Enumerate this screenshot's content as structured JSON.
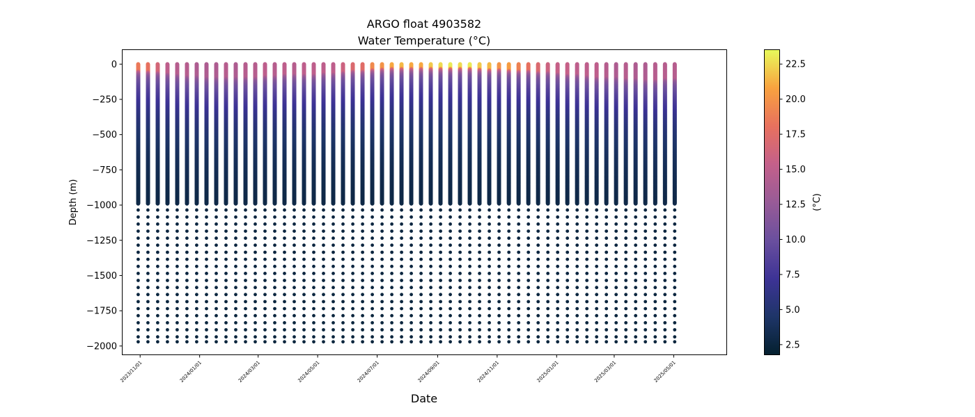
{
  "chart_data": {
    "type": "scatter",
    "title": "ARGO float 4903582",
    "subtitle": "Water Temperature (°C)",
    "xlabel": "Date",
    "ylabel": "Depth (m)",
    "colorbar_label": "(°C)",
    "x_range": [
      "2023-10-14",
      "2025-06-24"
    ],
    "ylim": [
      -2060,
      100
    ],
    "yticks": [
      0,
      -250,
      -500,
      -750,
      -1000,
      -1250,
      -1500,
      -1750,
      -2000
    ],
    "ytick_labels": [
      "0",
      "−250",
      "−500",
      "−750",
      "−1000",
      "−1250",
      "−1500",
      "−1750",
      "−2000"
    ],
    "xticks": [
      "2023-11-01",
      "2024-01-01",
      "2024-03-01",
      "2024-05-01",
      "2024-07-01",
      "2024-09-01",
      "2024-11-01",
      "2025-01-01",
      "2025-03-01",
      "2025-05-01"
    ],
    "xtick_labels": [
      "2023/11/01",
      "2024/01/01",
      "2024/03/01",
      "2024/05/01",
      "2024/07/01",
      "2024/09/01",
      "2024/11/01",
      "2025/01/01",
      "2025/03/01",
      "2025/05/01"
    ],
    "color_range": [
      1.8,
      23.5
    ],
    "colorbar_ticks": [
      2.5,
      5.0,
      7.5,
      10.0,
      12.5,
      15.0,
      17.5,
      20.0,
      22.5
    ],
    "colorbar_tick_labels": [
      "2.5",
      "5.0",
      "7.5",
      "10.0",
      "12.5",
      "15.0",
      "17.5",
      "20.0",
      "22.5"
    ],
    "colormap": "thermal",
    "colormap_stops": [
      "#04202f",
      "#1e3568",
      "#3d3396",
      "#6a4f9e",
      "#985b97",
      "#c4608a",
      "#e8715e",
      "#f8a23f",
      "#e8fa5b"
    ],
    "grid": false,
    "profile_start_date": "2023-10-30",
    "profile_interval_days": 10,
    "profile_count": 56,
    "shallow_depth_max": 1000,
    "deep_depths": [
      -1035,
      -1085,
      -1135,
      -1185,
      -1235,
      -1285,
      -1335,
      -1385,
      -1435,
      -1485,
      -1535,
      -1585,
      -1635,
      -1685,
      -1735,
      -1785,
      -1835,
      -1885,
      -1935,
      -1970
    ],
    "surface_temperatures": [
      18.5,
      18.0,
      16.5,
      15.0,
      14.5,
      14.5,
      14.0,
      14.0,
      14.0,
      14.5,
      14.0,
      14.5,
      14.5,
      15.0,
      14.5,
      15.0,
      14.5,
      15.0,
      15.0,
      15.0,
      15.0,
      16.0,
      17.0,
      17.5,
      19.5,
      20.0,
      21.0,
      21.5,
      21.0,
      21.0,
      22.0,
      22.5,
      23.0,
      22.5,
      23.0,
      22.0,
      21.5,
      20.0,
      20.5,
      19.0,
      18.0,
      17.0,
      16.0,
      15.5,
      15.5,
      15.0,
      15.0,
      15.0,
      14.5,
      14.0,
      14.5,
      14.0,
      14.0,
      14.5,
      14.5,
      14.5
    ],
    "mixed_layer_depths": [
      50,
      55,
      60,
      70,
      80,
      90,
      90,
      100,
      100,
      100,
      100,
      100,
      100,
      90,
      90,
      80,
      80,
      80,
      80,
      70,
      70,
      60,
      50,
      50,
      40,
      35,
      30,
      30,
      30,
      30,
      30,
      30,
      30,
      30,
      30,
      35,
      40,
      40,
      45,
      50,
      50,
      60,
      60,
      70,
      80,
      80,
      90,
      100,
      100,
      100,
      110,
      110,
      120,
      120,
      110,
      110
    ]
  }
}
